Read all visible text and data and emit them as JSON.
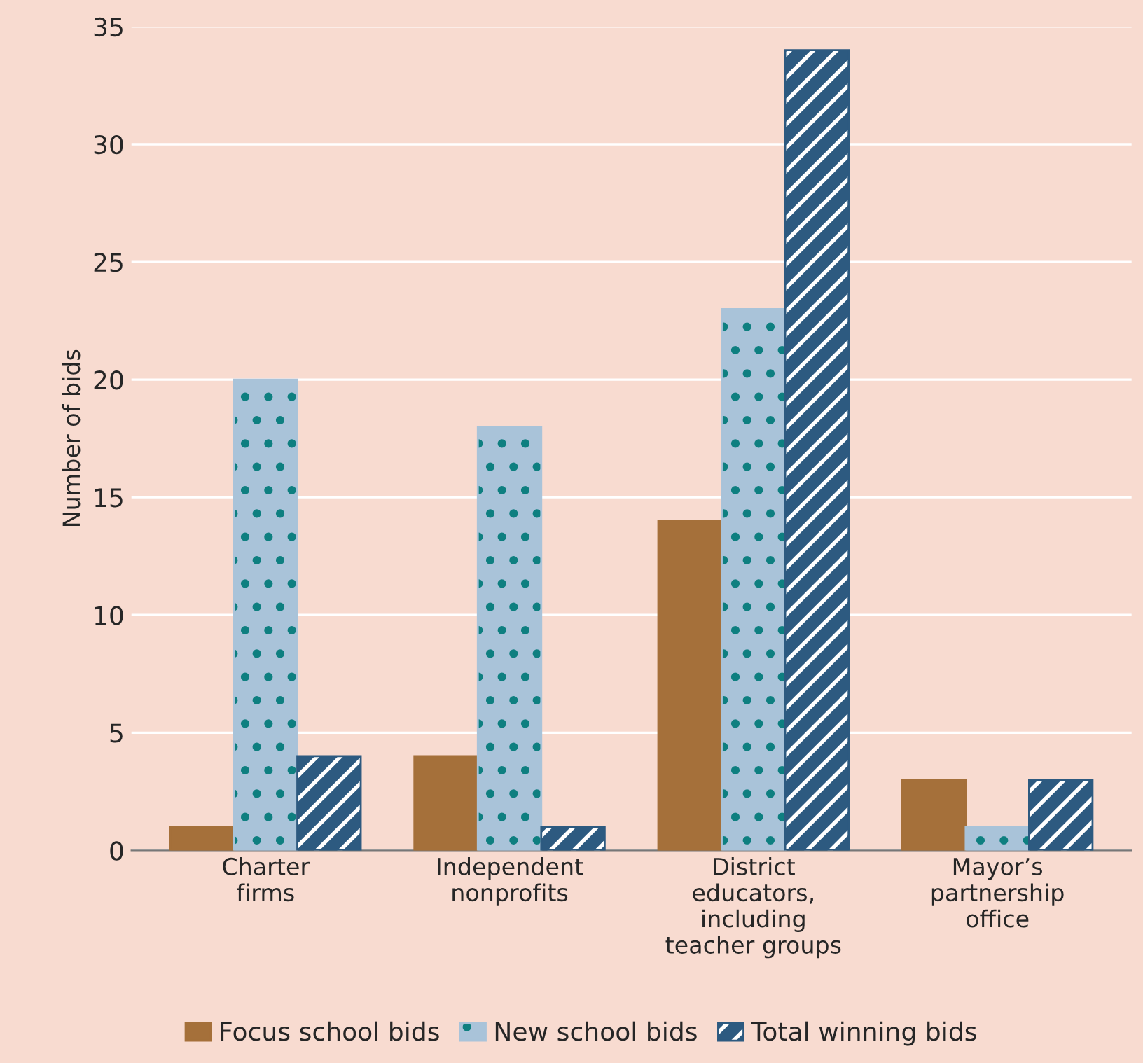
{
  "chart_data": {
    "type": "bar",
    "ylabel": "Number of bids",
    "categories": [
      "Charter\nfirms",
      "Independent\nnonprofits",
      "District\neducators,\nincluding\nteacher groups",
      "Mayor’s\npartnership\noffice"
    ],
    "series": [
      {
        "name": "Focus school bids",
        "color": "#a5703a",
        "values": [
          1,
          4,
          14,
          3
        ]
      },
      {
        "name": "New school bids",
        "color": "#a9c3d9",
        "values": [
          20,
          18,
          23,
          1
        ]
      },
      {
        "name": "Total winning bids",
        "color": "#2d5a80",
        "values": [
          4,
          1,
          34,
          3
        ]
      }
    ],
    "ylim": [
      0,
      35
    ],
    "yticks": [
      0,
      5,
      10,
      15,
      20,
      25,
      30,
      35
    ],
    "grid": "y",
    "legend": "bottom"
  }
}
